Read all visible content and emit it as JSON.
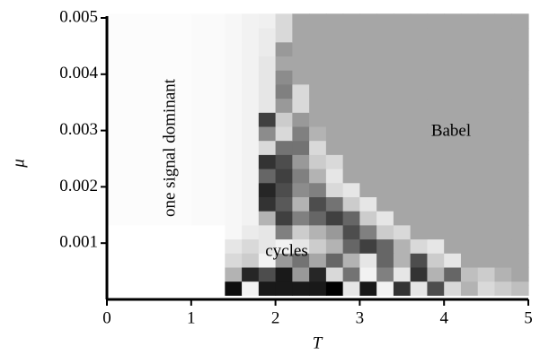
{
  "chart_data": {
    "type": "heatmap",
    "xlabel": "T",
    "ylabel": "μ",
    "annotations": [
      "Babel",
      "one signal dominant",
      "cycles"
    ],
    "colormap": "gray_r",
    "xlim": [
      0,
      5
    ],
    "ylim": [
      0,
      0.005
    ],
    "xticks": [
      0,
      1,
      2,
      3,
      4,
      5
    ],
    "yticks": [
      0.001,
      0.002,
      0.003,
      0.004,
      0.005
    ],
    "x": [
      0.1,
      0.3,
      0.5,
      0.7,
      0.9,
      1.1,
      1.3,
      1.5,
      1.7,
      1.9,
      2.1,
      2.3,
      2.5,
      2.7,
      2.9,
      3.1,
      3.3,
      3.5,
      3.7,
      3.9,
      4.1,
      4.3,
      4.5,
      4.7,
      4.9
    ],
    "y": [
      0.0002,
      0.00045,
      0.0007,
      0.00095,
      0.0012,
      0.00145,
      0.0017,
      0.00195,
      0.0022,
      0.00245,
      0.0027,
      0.00295,
      0.0032,
      0.00345,
      0.0037,
      0.00395,
      0.0042,
      0.00445,
      0.0047,
      0.00495
    ],
    "z": [
      [
        0,
        0,
        0,
        0,
        0,
        0,
        0,
        0.95,
        0.05,
        0.9,
        0.9,
        0.9,
        0.9,
        1.0,
        0.1,
        0.9,
        0.05,
        0.8,
        0.1,
        0.7,
        0.15,
        0.3,
        0.15,
        0.2,
        0.25
      ],
      [
        0,
        0,
        0,
        0,
        0,
        0,
        0,
        0.3,
        0.85,
        0.7,
        0.9,
        0.4,
        0.85,
        0.15,
        0.55,
        0.05,
        0.5,
        0.1,
        0.8,
        0.3,
        0.6,
        0.25,
        0.2,
        0.3,
        0.35
      ],
      [
        0,
        0,
        0,
        0,
        0,
        0,
        0,
        0.15,
        0.2,
        0.05,
        0.4,
        0.55,
        0.35,
        0.6,
        0.3,
        0.1,
        0.6,
        0.3,
        0.7,
        0.2,
        0.1,
        0.35,
        0.35,
        0.35,
        0.35
      ],
      [
        0,
        0,
        0,
        0,
        0,
        0,
        0,
        0.1,
        0.15,
        0.1,
        0.05,
        0.1,
        0.2,
        0.3,
        0.6,
        0.75,
        0.6,
        0.3,
        0.15,
        0.1,
        0.35,
        0.35,
        0.35,
        0.35,
        0.35
      ],
      [
        0,
        0,
        0,
        0,
        0,
        0,
        0,
        0.03,
        0.08,
        0.1,
        0.5,
        0.2,
        0.3,
        0.4,
        0.7,
        0.5,
        0.2,
        0.15,
        0.35,
        0.35,
        0.35,
        0.35,
        0.35,
        0.35,
        0.35
      ],
      [
        0.01,
        0.01,
        0.01,
        0.01,
        0.01,
        0.02,
        0.02,
        0.03,
        0.05,
        0.3,
        0.75,
        0.5,
        0.6,
        0.75,
        0.6,
        0.2,
        0.1,
        0.35,
        0.35,
        0.35,
        0.35,
        0.35,
        0.35,
        0.35,
        0.35
      ],
      [
        0.01,
        0.01,
        0.01,
        0.01,
        0.01,
        0.02,
        0.02,
        0.03,
        0.05,
        0.8,
        0.65,
        0.3,
        0.7,
        0.55,
        0.2,
        0.1,
        0.35,
        0.35,
        0.35,
        0.35,
        0.35,
        0.35,
        0.35,
        0.35,
        0.35
      ],
      [
        0.01,
        0.01,
        0.01,
        0.01,
        0.01,
        0.02,
        0.02,
        0.03,
        0.05,
        0.85,
        0.7,
        0.45,
        0.5,
        0.15,
        0.1,
        0.35,
        0.35,
        0.35,
        0.35,
        0.35,
        0.35,
        0.35,
        0.35,
        0.35,
        0.35
      ],
      [
        0.01,
        0.01,
        0.01,
        0.01,
        0.01,
        0.02,
        0.02,
        0.03,
        0.05,
        0.6,
        0.75,
        0.5,
        0.3,
        0.1,
        0.35,
        0.35,
        0.35,
        0.35,
        0.35,
        0.35,
        0.35,
        0.35,
        0.35,
        0.35,
        0.35
      ],
      [
        0.01,
        0.01,
        0.01,
        0.01,
        0.01,
        0.02,
        0.02,
        0.03,
        0.05,
        0.8,
        0.7,
        0.4,
        0.2,
        0.15,
        0.35,
        0.35,
        0.35,
        0.35,
        0.35,
        0.35,
        0.35,
        0.35,
        0.35,
        0.35,
        0.35
      ],
      [
        0.01,
        0.01,
        0.01,
        0.01,
        0.01,
        0.02,
        0.02,
        0.03,
        0.05,
        0.15,
        0.55,
        0.55,
        0.15,
        0.35,
        0.35,
        0.35,
        0.35,
        0.35,
        0.35,
        0.35,
        0.35,
        0.35,
        0.35,
        0.35,
        0.35
      ],
      [
        0.01,
        0.01,
        0.01,
        0.01,
        0.01,
        0.02,
        0.02,
        0.03,
        0.05,
        0.45,
        0.15,
        0.5,
        0.3,
        0.35,
        0.35,
        0.35,
        0.35,
        0.35,
        0.35,
        0.35,
        0.35,
        0.35,
        0.35,
        0.35,
        0.35
      ],
      [
        0.01,
        0.01,
        0.01,
        0.01,
        0.01,
        0.02,
        0.02,
        0.03,
        0.05,
        0.75,
        0.2,
        0.4,
        0.35,
        0.35,
        0.35,
        0.35,
        0.35,
        0.35,
        0.35,
        0.35,
        0.35,
        0.35,
        0.35,
        0.35,
        0.35
      ],
      [
        0.01,
        0.01,
        0.01,
        0.01,
        0.01,
        0.02,
        0.02,
        0.03,
        0.05,
        0.1,
        0.4,
        0.15,
        0.35,
        0.35,
        0.35,
        0.35,
        0.35,
        0.35,
        0.35,
        0.35,
        0.35,
        0.35,
        0.35,
        0.35,
        0.35
      ],
      [
        0.01,
        0.01,
        0.01,
        0.01,
        0.01,
        0.02,
        0.02,
        0.03,
        0.05,
        0.1,
        0.5,
        0.15,
        0.35,
        0.35,
        0.35,
        0.35,
        0.35,
        0.35,
        0.35,
        0.35,
        0.35,
        0.35,
        0.35,
        0.35,
        0.35
      ],
      [
        0.01,
        0.01,
        0.01,
        0.01,
        0.01,
        0.02,
        0.02,
        0.03,
        0.05,
        0.1,
        0.45,
        0.35,
        0.35,
        0.35,
        0.35,
        0.35,
        0.35,
        0.35,
        0.35,
        0.35,
        0.35,
        0.35,
        0.35,
        0.35,
        0.35
      ],
      [
        0.01,
        0.01,
        0.01,
        0.01,
        0.01,
        0.02,
        0.02,
        0.03,
        0.05,
        0.1,
        0.35,
        0.35,
        0.35,
        0.35,
        0.35,
        0.35,
        0.35,
        0.35,
        0.35,
        0.35,
        0.35,
        0.35,
        0.35,
        0.35,
        0.35
      ],
      [
        0.01,
        0.01,
        0.01,
        0.01,
        0.01,
        0.02,
        0.02,
        0.03,
        0.05,
        0.08,
        0.4,
        0.35,
        0.35,
        0.35,
        0.35,
        0.35,
        0.35,
        0.35,
        0.35,
        0.35,
        0.35,
        0.35,
        0.35,
        0.35,
        0.35
      ],
      [
        0.01,
        0.01,
        0.01,
        0.01,
        0.01,
        0.02,
        0.02,
        0.03,
        0.05,
        0.08,
        0.15,
        0.35,
        0.35,
        0.35,
        0.35,
        0.35,
        0.35,
        0.35,
        0.35,
        0.35,
        0.35,
        0.35,
        0.35,
        0.35,
        0.35
      ],
      [
        0.01,
        0.01,
        0.01,
        0.01,
        0.01,
        0.02,
        0.02,
        0.03,
        0.05,
        0.06,
        0.15,
        0.35,
        0.35,
        0.35,
        0.35,
        0.35,
        0.35,
        0.35,
        0.35,
        0.35,
        0.35,
        0.35,
        0.35,
        0.35,
        0.35
      ]
    ]
  }
}
